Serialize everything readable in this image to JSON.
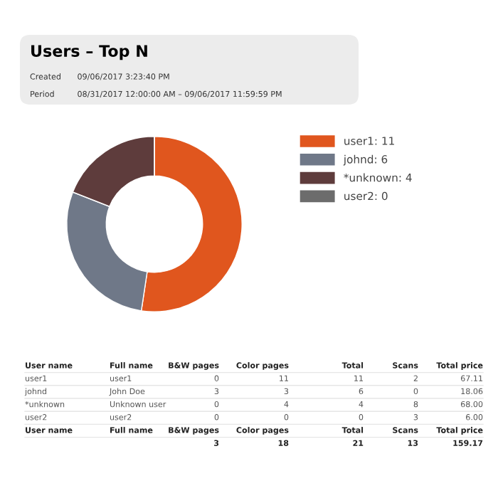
{
  "chart_data": {
    "type": "donut",
    "title": "Users – Top N",
    "categories": [
      "user1: 11",
      "johnd: 6",
      "*unknown: 4",
      "user2: 0"
    ],
    "values": [
      11,
      6,
      4,
      0
    ],
    "colors": [
      "#e0561e",
      "#6f7888",
      "#5e3c3c",
      "#6c6c6c"
    ],
    "legend": "top right",
    "annotations": [
      "Created",
      "09/06/2017 3:23:40 PM",
      "Period",
      "08/31/2017 12:00:00 AM – 09/06/2017 11:59:59 PM",
      "User name",
      "Full name",
      "B&W pages",
      "Color pages",
      "Total",
      "Scans",
      "Total price",
      "user1",
      "user1",
      "0",
      "11",
      "11",
      "2",
      "67.11",
      "johnd",
      "John Doe",
      "3",
      "3",
      "6",
      "0",
      "18.06",
      "*unknown",
      "Unknown user",
      "0",
      "4",
      "4",
      "8",
      "68.00",
      "user2",
      "user2",
      "0",
      "0",
      "0",
      "3",
      "6.00",
      "User name",
      "Full name",
      "B&W pages",
      "Color pages",
      "Total",
      "Scans",
      "Total price",
      "3",
      "18",
      "21",
      "13",
      "159.17"
    ]
  }
}
